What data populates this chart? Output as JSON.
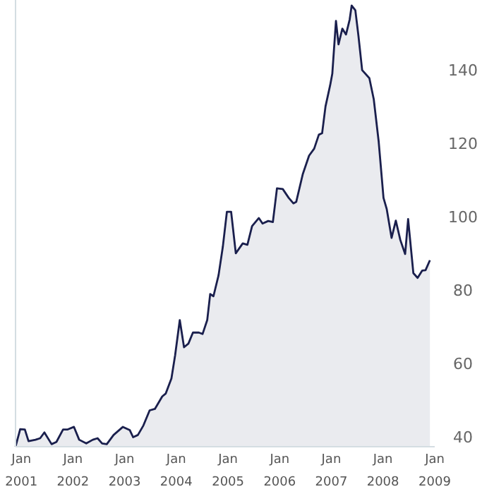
{
  "chart_data": {
    "type": "area",
    "x": [
      "2000-11-21",
      "2000-12-24",
      "2001-01-26",
      "2001-02-21",
      "2001-04-11",
      "2001-05-14",
      "2001-06-13",
      "2001-08-03",
      "2001-09-06",
      "2001-10-23",
      "2001-11-25",
      "2002-01-08",
      "2002-02-14",
      "2002-04-05",
      "2002-05-21",
      "2002-06-24",
      "2002-07-26",
      "2002-08-28",
      "2002-10-15",
      "2002-12-20",
      "2003-02-07",
      "2003-03-02",
      "2003-04-05",
      "2003-05-14",
      "2003-06-27",
      "2003-08-03",
      "2003-09-24",
      "2003-10-19",
      "2003-11-28",
      "2003-12-24",
      "2004-01-26",
      "2004-02-25",
      "2004-03-27",
      "2004-04-28",
      "2004-06-09",
      "2004-07-05",
      "2004-08-07",
      "2004-08-28",
      "2004-09-20",
      "2004-10-26",
      "2004-11-25",
      "2004-12-24",
      "2005-01-23",
      "2005-02-25",
      "2005-04-15",
      "2005-05-18",
      "2005-06-20",
      "2005-08-07",
      "2005-09-02",
      "2005-10-12",
      "2005-11-14",
      "2005-12-13",
      "2006-01-23",
      "2006-03-06",
      "2006-04-08",
      "2006-04-28",
      "2006-06-13",
      "2006-07-28",
      "2006-09-02",
      "2006-10-05",
      "2006-10-28",
      "2006-11-21",
      "2006-12-24",
      "2007-01-08",
      "2007-02-03",
      "2007-02-21",
      "2007-03-20",
      "2007-04-15",
      "2007-05-11",
      "2007-05-25",
      "2007-06-20",
      "2007-07-12",
      "2007-08-07",
      "2007-09-27",
      "2007-10-28",
      "2007-12-02",
      "2008-01-05",
      "2008-01-28",
      "2008-03-02",
      "2008-04-01",
      "2008-05-03",
      "2008-06-06",
      "2008-06-27",
      "2008-08-03",
      "2008-09-02",
      "2008-10-05",
      "2008-10-28",
      "2008-11-28"
    ],
    "series": [
      {
        "color": "#1a1f4d",
        "values": [
          37.3,
          42.1,
          42,
          38.8,
          39.2,
          39.6,
          41.2,
          38,
          38.6,
          42,
          42,
          42.7,
          39.2,
          38.2,
          39.2,
          39.6,
          38.2,
          38,
          40.5,
          42.7,
          41.8,
          39.9,
          40.5,
          43.1,
          47.2,
          47.6,
          51,
          51.8,
          55.9,
          62.2,
          71.8,
          64.4,
          65.4,
          68.4,
          68.4,
          68,
          71.8,
          78.9,
          78.3,
          84,
          91.7,
          101.3,
          101.3,
          90,
          92.7,
          92.3,
          97.4,
          99.6,
          98.1,
          98.8,
          98.5,
          107.7,
          107.5,
          105.1,
          103.6,
          104,
          111.5,
          116.6,
          118.5,
          122.3,
          122.7,
          130,
          135.8,
          138.9,
          153.3,
          146.9,
          151.2,
          149.6,
          153.7,
          157.5,
          156.2,
          149.2,
          139.9,
          137.7,
          132,
          120.4,
          105.1,
          102,
          94.2,
          98.9,
          93.6,
          89.8,
          99.3,
          84.6,
          83.3,
          85.3,
          85.4,
          88.1
        ]
      }
    ],
    "xlim": [
      "2000-11-21",
      "2009-01-01"
    ],
    "xticks": [
      {
        "value": "2001-01-01",
        "label": "Jan 2001"
      },
      {
        "value": "2002-01-01",
        "label": "Jan 2002"
      },
      {
        "value": "2003-01-01",
        "label": "Jan 2003"
      },
      {
        "value": "2004-01-01",
        "label": "Jan 2004"
      },
      {
        "value": "2005-01-01",
        "label": "Jan 2005"
      },
      {
        "value": "2006-01-01",
        "label": "Jan 2006"
      },
      {
        "value": "2007-01-01",
        "label": "Jan 2007"
      },
      {
        "value": "2008-01-01",
        "label": "Jan 2008"
      },
      {
        "value": "2009-01-01",
        "label": "Jan 2009"
      }
    ],
    "ylim": [
      37.3,
      159
    ],
    "yticks": [
      40,
      60,
      80,
      100,
      120,
      140
    ]
  }
}
